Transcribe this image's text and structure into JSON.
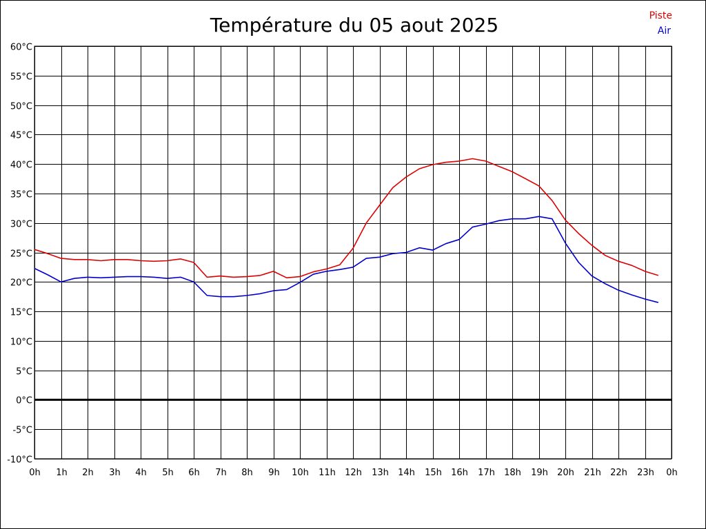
{
  "chart_data": {
    "type": "line",
    "title": "Température du 05 aout 2025",
    "xlabel": "",
    "ylabel": "",
    "xlim": [
      0,
      24
    ],
    "ylim": [
      -10,
      60
    ],
    "grid": true,
    "legend_position": "top-right",
    "x_tick_labels": [
      "0h",
      "1h",
      "2h",
      "3h",
      "4h",
      "5h",
      "6h",
      "7h",
      "8h",
      "9h",
      "10h",
      "11h",
      "12h",
      "13h",
      "14h",
      "15h",
      "16h",
      "17h",
      "18h",
      "19h",
      "20h",
      "21h",
      "22h",
      "23h",
      "0h"
    ],
    "y_ticks": [
      -10,
      -5,
      0,
      5,
      10,
      15,
      20,
      25,
      30,
      35,
      40,
      45,
      50,
      55,
      60
    ],
    "y_tick_labels": [
      "-10°C",
      "-5°C",
      "0°C",
      "5°C",
      "10°C",
      "15°C",
      "20°C",
      "25°C",
      "30°C",
      "35°C",
      "40°C",
      "45°C",
      "50°C",
      "55°C",
      "60°C"
    ],
    "x": [
      0,
      0.5,
      1,
      1.5,
      2,
      2.5,
      3,
      3.5,
      4,
      4.5,
      5,
      5.5,
      6,
      6.5,
      7,
      7.5,
      8,
      8.5,
      9,
      9.5,
      10,
      10.5,
      11,
      11.5,
      12,
      12.5,
      13,
      13.5,
      14,
      14.5,
      15,
      15.5,
      16,
      16.5,
      17,
      17.5,
      18,
      18.5,
      19,
      19.5,
      20,
      20.5,
      21,
      21.5,
      22,
      22.5,
      23,
      23.5
    ],
    "series": [
      {
        "name": "Piste",
        "color": "#dd0000",
        "values": [
          25.5,
          24.8,
          24.0,
          23.8,
          23.8,
          23.6,
          23.8,
          23.8,
          23.6,
          23.5,
          23.6,
          23.9,
          23.3,
          20.8,
          21.0,
          20.8,
          20.9,
          21.1,
          21.8,
          20.7,
          20.9,
          21.7,
          22.2,
          22.9,
          25.7,
          30.0,
          33.0,
          36.0,
          37.8,
          39.2,
          39.9,
          40.3,
          40.5,
          40.9,
          40.5,
          39.6,
          38.7,
          37.5,
          36.3,
          33.8,
          30.5,
          28.2,
          26.2,
          24.5,
          23.5,
          22.8,
          21.8,
          21.1
        ],
        "x_end": 23.5
      },
      {
        "name": "Air",
        "color": "#0000cc",
        "values": [
          22.3,
          21.2,
          20.0,
          20.6,
          20.8,
          20.7,
          20.8,
          20.9,
          20.9,
          20.8,
          20.6,
          20.8,
          20.0,
          17.7,
          17.5,
          17.5,
          17.7,
          18.0,
          18.5,
          18.7,
          19.9,
          21.3,
          21.8,
          22.1,
          22.5,
          24.0,
          24.2,
          24.8,
          25.0,
          25.8,
          25.4,
          26.5,
          27.2,
          29.3,
          29.8,
          30.4,
          30.7,
          30.7,
          31.1,
          30.7,
          26.6,
          23.3,
          21.0,
          19.7,
          18.6,
          17.8,
          17.1,
          16.5
        ]
      }
    ],
    "zero_line": true
  },
  "legend": [
    {
      "name": "Piste",
      "color": "#dd0000"
    },
    {
      "name": "Air",
      "color": "#0000cc"
    }
  ]
}
